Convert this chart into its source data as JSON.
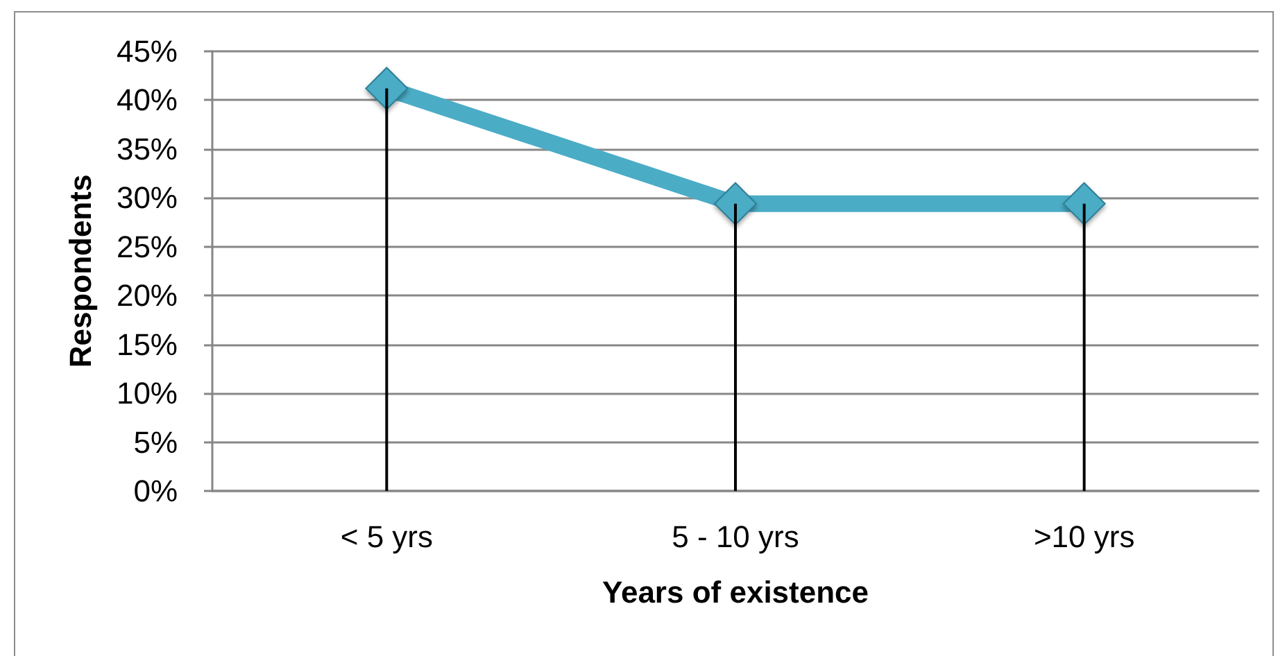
{
  "chart_data": {
    "type": "line",
    "xlabel": "Years of existence",
    "ylabel": "Respondents",
    "categories": [
      "< 5 yrs",
      "5 - 10 yrs",
      ">10 yrs"
    ],
    "series": [
      {
        "type": "bar",
        "color": "#000000",
        "values": [
          41.2,
          29.4,
          29.4
        ]
      },
      {
        "color": "#4bacc6",
        "values": [
          41.2,
          29.4,
          29.4
        ]
      }
    ],
    "ylim": [
      0,
      45
    ],
    "yticks": [
      {
        "value": 0,
        "label": "0%"
      },
      {
        "value": 5,
        "label": "5%"
      },
      {
        "value": 10,
        "label": "10%"
      },
      {
        "value": 15,
        "label": "15%"
      },
      {
        "value": 20,
        "label": "20%"
      },
      {
        "value": 25,
        "label": "25%"
      },
      {
        "value": 30,
        "label": "30%"
      },
      {
        "value": 35,
        "label": "35%"
      },
      {
        "value": 40,
        "label": "40%"
      },
      {
        "value": 45,
        "label": "45%"
      }
    ],
    "grid": "y",
    "marker": "diamond"
  }
}
